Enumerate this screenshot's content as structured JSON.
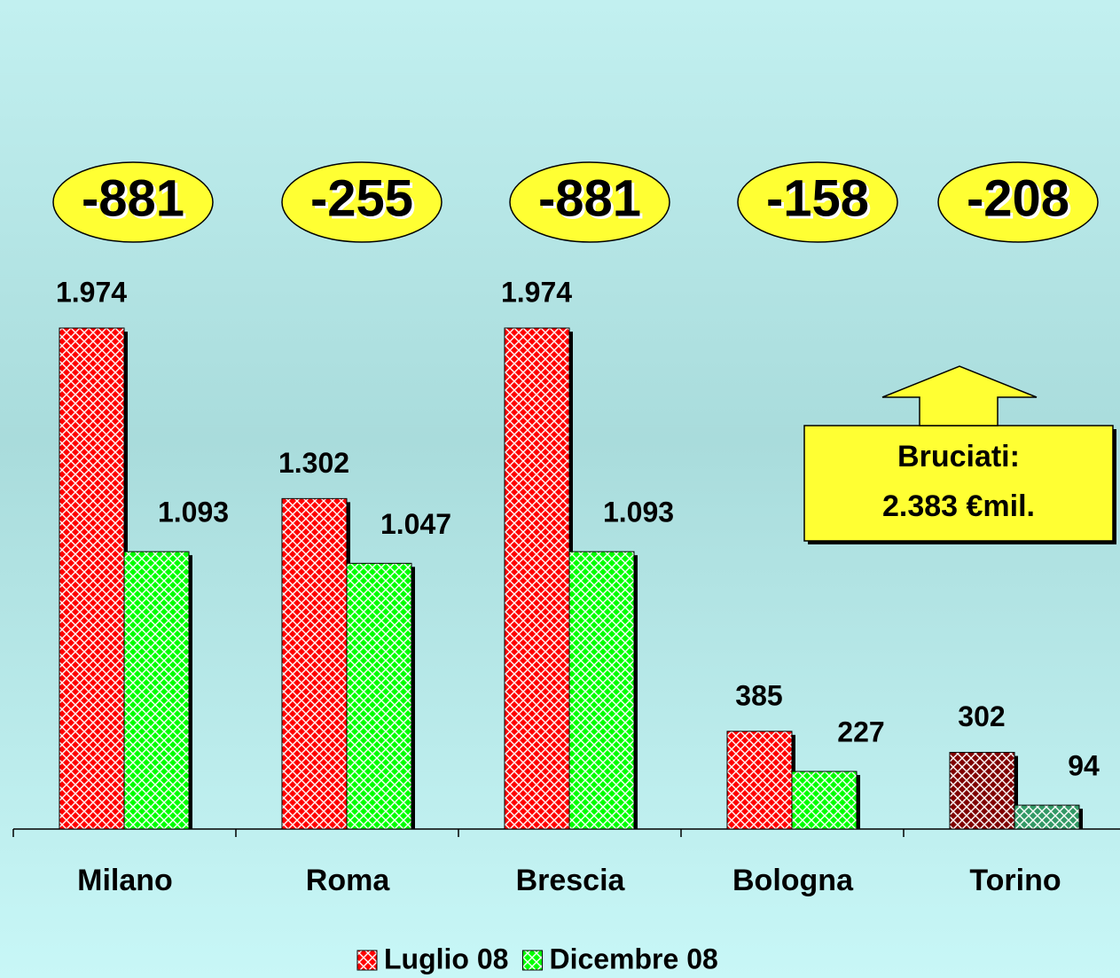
{
  "chart_data": {
    "type": "bar",
    "categories": [
      "Milano",
      "Roma",
      "Brescia",
      "Bologna",
      "Torino"
    ],
    "series": [
      {
        "name": "Luglio 08",
        "color": "#ff0000",
        "point_colors": [
          "#ff0000",
          "#ff0000",
          "#ff0000",
          "#ff0000",
          "#800000"
        ],
        "values": [
          1974,
          1302,
          1974,
          385,
          302
        ],
        "value_labels": [
          "1.974",
          "1.302",
          "1.974",
          "385",
          "302"
        ]
      },
      {
        "name": "Dicembre 08",
        "color": "#00ff00",
        "point_colors": [
          "#00ff00",
          "#00ff00",
          "#00ff00",
          "#00ff00",
          "#339966"
        ],
        "values": [
          1093,
          1047,
          1093,
          227,
          94
        ],
        "value_labels": [
          "1.093",
          "1.047",
          "1.093",
          "227",
          "94"
        ]
      }
    ],
    "differences": [
      "-881",
      "-255",
      "-881",
      "-158",
      "-208"
    ],
    "callout": [
      "Bruciati:",
      "2.383 €mil."
    ],
    "legend": "bottom"
  }
}
